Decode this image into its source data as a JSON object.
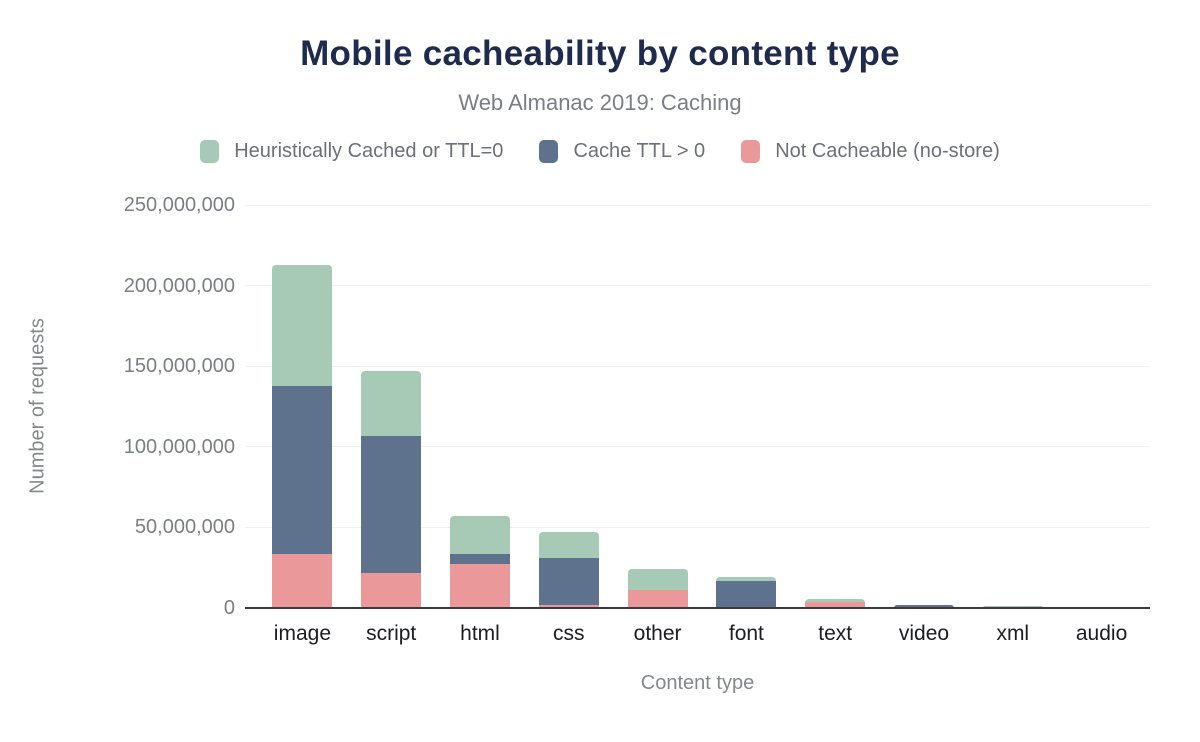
{
  "header": {
    "title": "Mobile cacheability by content type",
    "subtitle": "Web Almanac 2019: Caching"
  },
  "legend": [
    {
      "label": "Heuristically Cached or TTL=0",
      "color": "#a6cab6",
      "swatch": "green-square-icon"
    },
    {
      "label": "Cache TTL > 0",
      "color": "#5e718d",
      "swatch": "blue-square-icon"
    },
    {
      "label": "Not Cacheable (no-store)",
      "color": "#ea989a",
      "swatch": "red-square-icon"
    }
  ],
  "chart_data": {
    "type": "bar",
    "stacked": true,
    "title": "Mobile cacheability by content type",
    "subtitle": "Web Almanac 2019: Caching",
    "xlabel": "Content type",
    "ylabel": "Number of requests",
    "categories": [
      "image",
      "script",
      "html",
      "css",
      "other",
      "font",
      "text",
      "video",
      "xml",
      "audio"
    ],
    "series": [
      {
        "name": "Not Cacheable (no-store)",
        "color": "#ea989a",
        "values": [
          33500000,
          22000000,
          27000000,
          2000000,
          11000000,
          0,
          3500000,
          0,
          0,
          0
        ]
      },
      {
        "name": "Cache TTL > 0",
        "color": "#5e718d",
        "values": [
          104000000,
          85000000,
          6500000,
          29000000,
          0,
          17000000,
          0,
          2000000,
          0,
          200000
        ]
      },
      {
        "name": "Heuristically Cached or TTL=0",
        "color": "#a6cab6",
        "values": [
          75000000,
          40000000,
          23500000,
          16000000,
          13000000,
          2500000,
          2000000,
          0,
          1500000,
          100000
        ]
      }
    ],
    "ylim": [
      0,
      250000000
    ],
    "yticks": [
      0,
      50000000,
      100000000,
      150000000,
      200000000,
      250000000
    ],
    "ytick_labels": [
      "0",
      "50,000,000",
      "100,000,000",
      "150,000,000",
      "200,000,000",
      "250,000,000"
    ],
    "grid": true,
    "legend_position": "top",
    "totals": [
      212500000,
      147000000,
      57000000,
      47000000,
      24000000,
      19500000,
      5500000,
      2000000,
      1500000,
      300000
    ]
  }
}
